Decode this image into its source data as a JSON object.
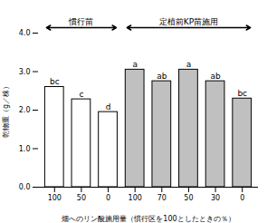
{
  "chart_data": {
    "type": "bar",
    "categories": [
      "100",
      "50",
      "0",
      "100",
      "70",
      "50",
      "30",
      "0"
    ],
    "values": [
      2.6,
      2.28,
      1.95,
      3.05,
      2.75,
      3.05,
      2.75,
      2.3
    ],
    "bar_labels": [
      "bc",
      "c",
      "d",
      "a",
      "ab",
      "a",
      "ab",
      "bc"
    ],
    "groups": [
      "慣行苗",
      "慣行苗",
      "慣行苗",
      "定植前KP苗施用",
      "定植前KP苗施用",
      "定植前KP苗施用",
      "定植前KP苗施用",
      "定植前KP苗施用"
    ],
    "colors": [
      "white",
      "white",
      "white",
      "#c0c0c0",
      "#c0c0c0",
      "#c0c0c0",
      "#c0c0c0",
      "#c0c0c0"
    ],
    "xlabel": "畑へのリン酸施用量（慣行区を100としたときの％）",
    "ylabel": "乾物重（g／株）",
    "ylim": [
      0,
      4.0
    ],
    "yticks": [
      0,
      1,
      2,
      3,
      4
    ],
    "grid": false
  }
}
